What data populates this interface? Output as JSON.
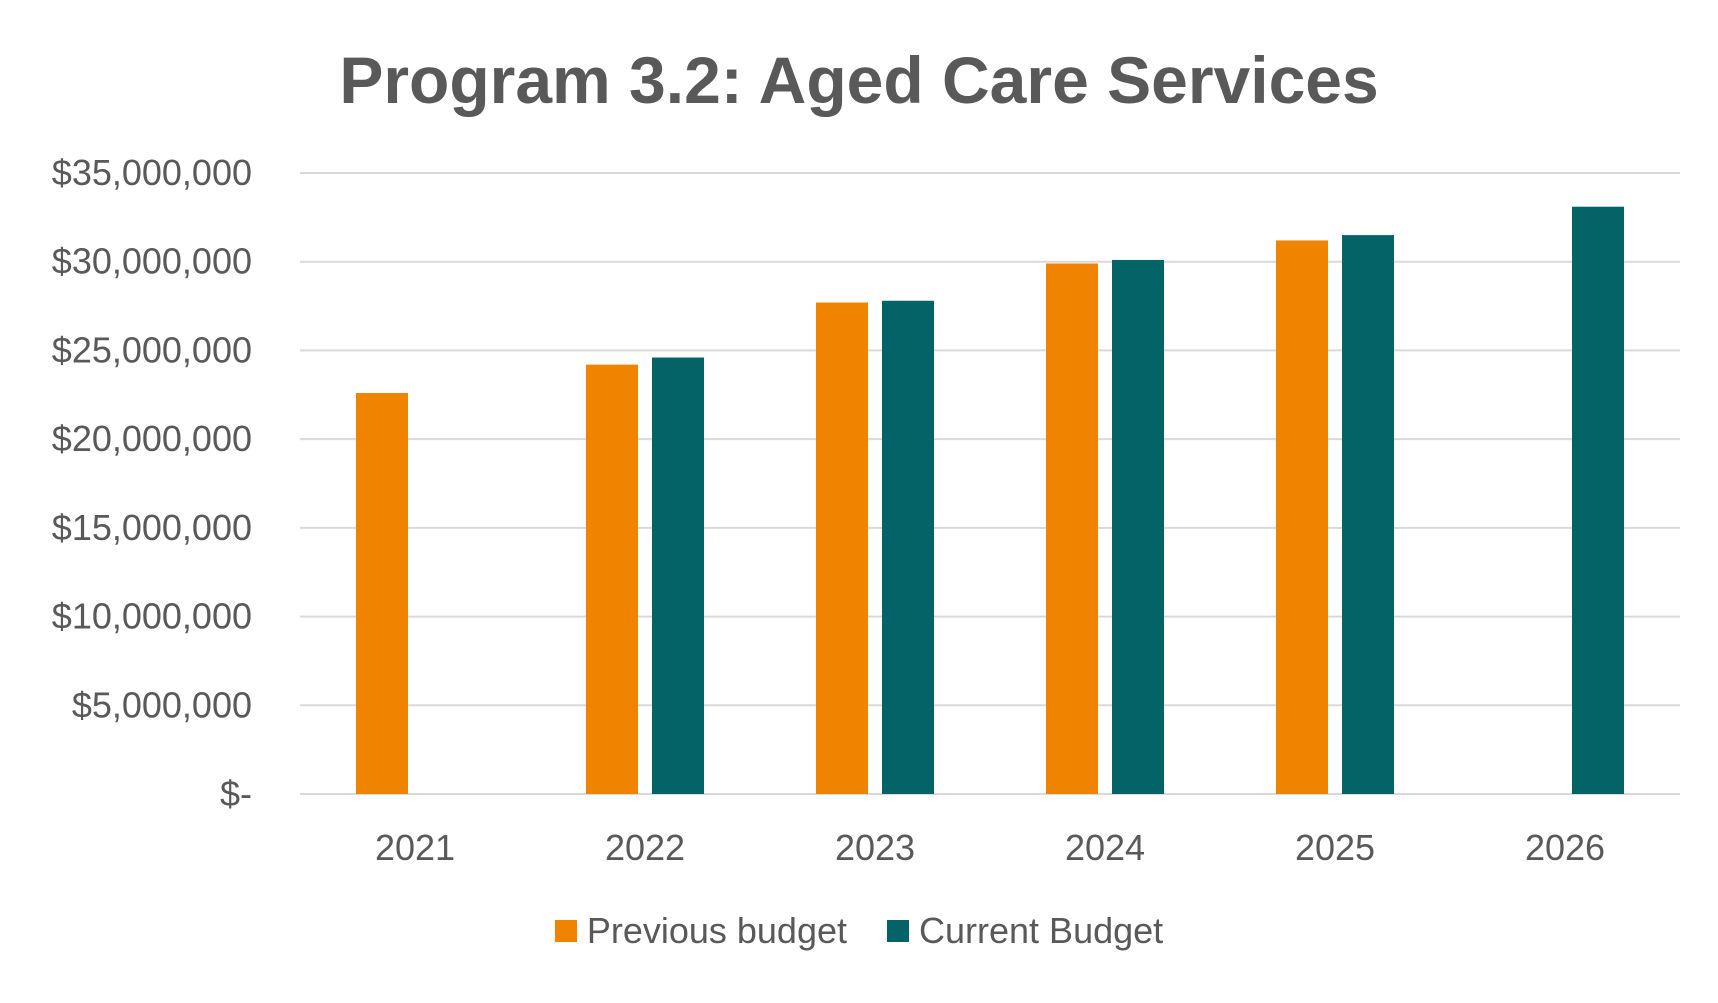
{
  "chart_data": {
    "type": "bar",
    "title": "Program 3.2: Aged Care Services",
    "xlabel": "",
    "ylabel": "",
    "categories": [
      "2021",
      "2022",
      "2023",
      "2024",
      "2025",
      "2026"
    ],
    "series": [
      {
        "name": "Previous budget",
        "color": "#F08300",
        "values": [
          22600000,
          24200000,
          27700000,
          29900000,
          31200000,
          null
        ]
      },
      {
        "name": "Current Budget",
        "color": "#036366",
        "values": [
          null,
          24600000,
          27800000,
          30100000,
          31500000,
          33100000
        ]
      }
    ],
    "ylim": [
      0,
      35000000
    ],
    "yticks": [
      0,
      5000000,
      10000000,
      15000000,
      20000000,
      25000000,
      30000000,
      35000000
    ],
    "ytick_labels": [
      "$-",
      "$5,000,000",
      "$10,000,000",
      "$15,000,000",
      "$20,000,000",
      "$25,000,000",
      "$30,000,000",
      "$35,000,000"
    ],
    "grid": true,
    "legend_position": "bottom"
  }
}
